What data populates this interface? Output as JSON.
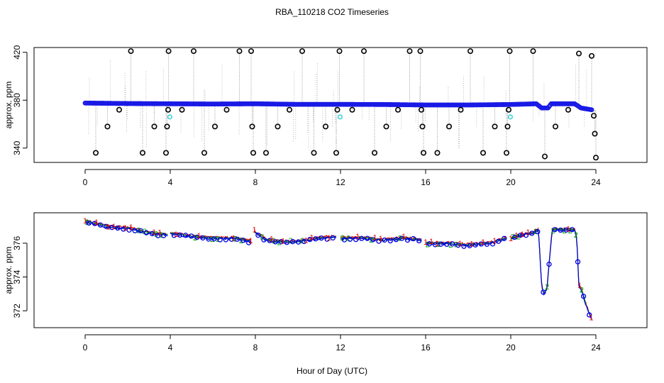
{
  "figure": {
    "title": "RBA_110218  CO2 Timeseries",
    "xlabel": "Hour of Day (UTC)"
  },
  "colors": {
    "outlier": "#000000",
    "seriesMain": "#1a1ae6",
    "seriesAlt": "#40d0d8",
    "series1": "#e00000",
    "series2": "#00a000",
    "series3": "#0000e0",
    "connector": "#9a9a9a",
    "minute": "#a0a0a0"
  },
  "chart_data": [
    {
      "type": "scatter",
      "panel": "top",
      "title": "RBA_110218  CO2 Timeseries",
      "xlabel": "",
      "ylabel": "approx. ppm",
      "xlim": [
        -2.4,
        26.4
      ],
      "ylim": [
        328,
        424
      ],
      "xticks": [
        0,
        4,
        8,
        12,
        16,
        20,
        24
      ],
      "yticks": [
        340,
        380,
        420
      ],
      "baseline": [
        [
          0,
          377.6
        ],
        [
          2,
          377.2
        ],
        [
          4,
          377.0
        ],
        [
          6,
          376.8
        ],
        [
          8,
          377.0
        ],
        [
          10,
          376.5
        ],
        [
          12,
          376.5
        ],
        [
          14,
          376.4
        ],
        [
          16,
          376.0
        ],
        [
          18,
          376.0
        ],
        [
          20,
          376.4
        ],
        [
          21.2,
          377.0
        ],
        [
          21.45,
          373.5
        ],
        [
          21.75,
          373.5
        ],
        [
          21.9,
          377.0
        ],
        [
          23.0,
          377.0
        ],
        [
          23.3,
          373.5
        ],
        [
          23.8,
          372.0
        ]
      ],
      "baseline_range": [
        0,
        23.8
      ],
      "outliers": [
        {
          "x": 0.5,
          "y": 336
        },
        {
          "x": 1.05,
          "y": 358
        },
        {
          "x": 1.6,
          "y": 372
        },
        {
          "x": 2.15,
          "y": 421
        },
        {
          "x": 2.7,
          "y": 336
        },
        {
          "x": 3.25,
          "y": 358
        },
        {
          "x": 3.8,
          "y": 336
        },
        {
          "x": 3.85,
          "y": 358
        },
        {
          "x": 3.9,
          "y": 372
        },
        {
          "x": 3.92,
          "y": 421
        },
        {
          "x": 4.55,
          "y": 372
        },
        {
          "x": 5.1,
          "y": 421
        },
        {
          "x": 5.6,
          "y": 336
        },
        {
          "x": 6.1,
          "y": 358
        },
        {
          "x": 6.65,
          "y": 372
        },
        {
          "x": 7.25,
          "y": 421
        },
        {
          "x": 7.8,
          "y": 421
        },
        {
          "x": 7.85,
          "y": 358
        },
        {
          "x": 7.9,
          "y": 336
        },
        {
          "x": 8.5,
          "y": 336
        },
        {
          "x": 9.05,
          "y": 358
        },
        {
          "x": 9.6,
          "y": 372
        },
        {
          "x": 10.2,
          "y": 421
        },
        {
          "x": 10.75,
          "y": 336
        },
        {
          "x": 11.3,
          "y": 358
        },
        {
          "x": 11.8,
          "y": 336
        },
        {
          "x": 11.85,
          "y": 372
        },
        {
          "x": 11.95,
          "y": 421
        },
        {
          "x": 12.55,
          "y": 372
        },
        {
          "x": 13.1,
          "y": 421
        },
        {
          "x": 13.6,
          "y": 336
        },
        {
          "x": 14.15,
          "y": 358
        },
        {
          "x": 14.7,
          "y": 372
        },
        {
          "x": 15.25,
          "y": 421
        },
        {
          "x": 15.75,
          "y": 421
        },
        {
          "x": 15.8,
          "y": 372
        },
        {
          "x": 15.85,
          "y": 358
        },
        {
          "x": 15.9,
          "y": 336
        },
        {
          "x": 16.55,
          "y": 336
        },
        {
          "x": 17.1,
          "y": 358
        },
        {
          "x": 17.65,
          "y": 372
        },
        {
          "x": 18.1,
          "y": 421
        },
        {
          "x": 18.7,
          "y": 336
        },
        {
          "x": 19.25,
          "y": 358
        },
        {
          "x": 19.8,
          "y": 336
        },
        {
          "x": 19.85,
          "y": 358
        },
        {
          "x": 19.9,
          "y": 372
        },
        {
          "x": 19.95,
          "y": 421
        },
        {
          "x": 21.05,
          "y": 421
        },
        {
          "x": 21.6,
          "y": 333
        },
        {
          "x": 22.1,
          "y": 358
        },
        {
          "x": 22.7,
          "y": 372
        },
        {
          "x": 23.2,
          "y": 419
        },
        {
          "x": 23.8,
          "y": 417
        },
        {
          "x": 23.9,
          "y": 367
        },
        {
          "x": 23.95,
          "y": 352
        },
        {
          "x": 24.0,
          "y": 332
        }
      ],
      "alt_points": [
        {
          "x": 3.98,
          "y": 366
        },
        {
          "x": 11.98,
          "y": 366
        },
        {
          "x": 19.98,
          "y": 366
        }
      ]
    },
    {
      "type": "line",
      "panel": "bottom",
      "title": "",
      "xlabel": "Hour of Day (UTC)",
      "ylabel": "approx. ppm",
      "xlim": [
        -2.4,
        26.4
      ],
      "ylim": [
        371.0,
        377.8
      ],
      "xticks": [
        0,
        4,
        8,
        12,
        16,
        20,
        24
      ],
      "yticks": [
        372,
        374,
        376
      ],
      "segments": [
        {
          "series": "1",
          "points": [
            [
              0,
              377.3
            ],
            [
              1,
              377.0
            ],
            [
              2,
              376.9
            ],
            [
              3,
              376.6
            ],
            [
              3.9,
              376.5
            ]
          ]
        },
        {
          "series": "1",
          "points": [
            [
              4.0,
              376.6
            ],
            [
              5,
              376.4
            ],
            [
              6,
              376.3
            ],
            [
              7,
              376.3
            ],
            [
              7.8,
              376.1
            ]
          ]
        },
        {
          "series": "1",
          "points": [
            [
              7.95,
              376.7
            ],
            [
              8.5,
              376.2
            ],
            [
              9,
              376.1
            ],
            [
              10,
              376.1
            ],
            [
              11,
              376.3
            ],
            [
              11.8,
              376.4
            ]
          ]
        },
        {
          "series": "1",
          "points": [
            [
              12.0,
              376.3
            ],
            [
              13,
              376.3
            ],
            [
              14,
              376.2
            ],
            [
              15,
              376.3
            ],
            [
              15.8,
              376.2
            ]
          ]
        },
        {
          "series": "1",
          "points": [
            [
              16.0,
              376.0
            ],
            [
              17,
              376.0
            ],
            [
              18,
              375.9
            ],
            [
              19,
              376.0
            ],
            [
              19.8,
              376.3
            ]
          ]
        },
        {
          "series": "1",
          "points": [
            [
              20.0,
              376.3
            ],
            [
              20.5,
              376.5
            ],
            [
              21.0,
              376.6
            ],
            [
              21.3,
              376.8
            ],
            [
              21.45,
              373.5
            ],
            [
              21.55,
              373.0
            ],
            [
              21.7,
              373.3
            ],
            [
              21.85,
              375.5
            ],
            [
              21.95,
              376.8
            ],
            [
              22.5,
              376.8
            ],
            [
              23.0,
              376.8
            ],
            [
              23.1,
              376.3
            ],
            [
              23.2,
              373.5
            ],
            [
              23.35,
              373.2
            ],
            [
              23.5,
              372.5
            ],
            [
              23.7,
              371.8
            ],
            [
              23.8,
              371.5
            ]
          ]
        }
      ],
      "markers": [
        "1",
        "2",
        "3"
      ]
    }
  ]
}
